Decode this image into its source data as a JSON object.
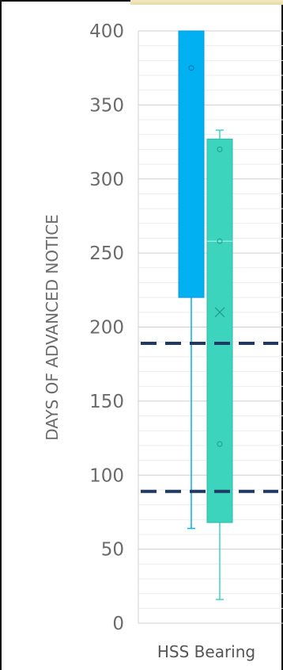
{
  "chart_data": {
    "type": "boxplot",
    "ylabel": "DAYS OF ADVANCED NOTICE",
    "categories": [
      "HSS Bearing"
    ],
    "y_ticks": [
      "400",
      "350",
      "300",
      "250",
      "200",
      "150",
      "100",
      "50",
      "0"
    ],
    "ylim": [
      0,
      400
    ],
    "grid": true,
    "series": [
      {
        "color": "#00b0f0",
        "whisker_low": 64,
        "q1": 220,
        "median": 400,
        "q3": 400,
        "whisker_high": 400,
        "points": [
          375
        ]
      },
      {
        "color": "#3cd4bd",
        "whisker_low": 16,
        "q1": 68,
        "median": 258,
        "q3": 327,
        "whisker_high": 333,
        "mean": 210,
        "points": [
          320,
          258,
          121
        ]
      }
    ],
    "reference_lines": [
      {
        "value": 189,
        "color": "#1f3864",
        "style": "dashed"
      },
      {
        "value": 89,
        "color": "#1f3864",
        "style": "dashed"
      }
    ]
  }
}
